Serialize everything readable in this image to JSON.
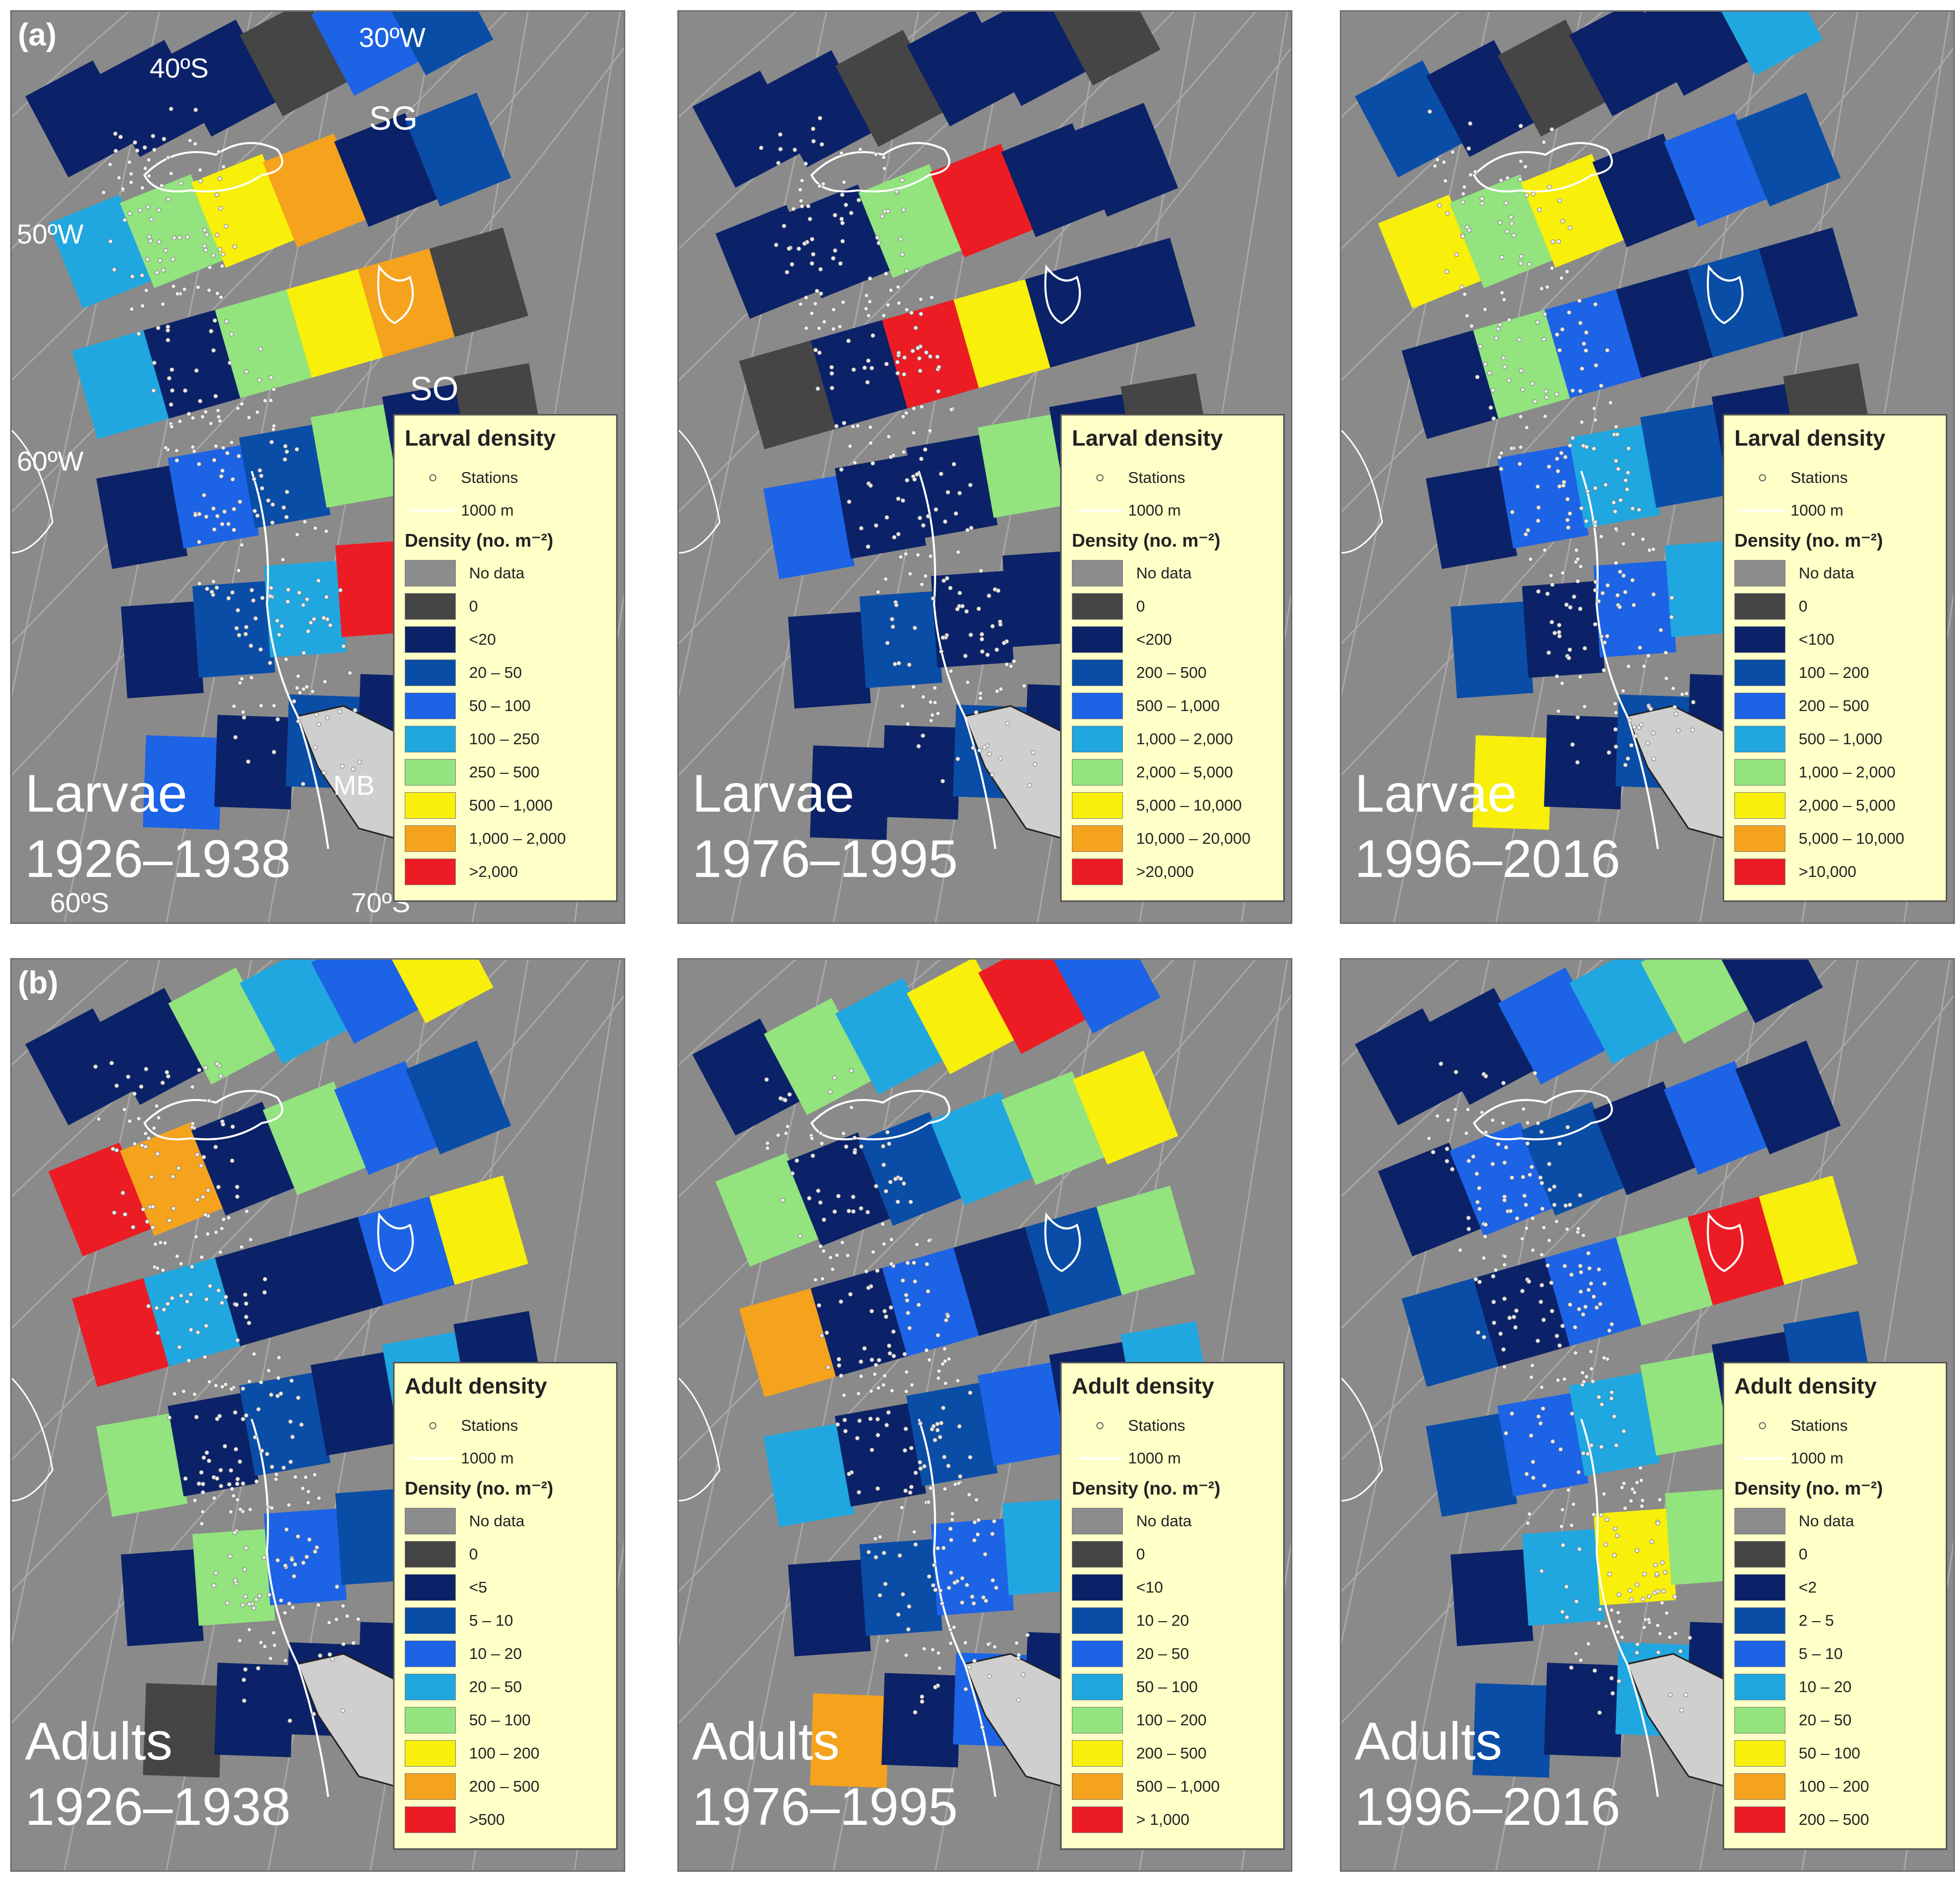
{
  "panel_a_letter": "(a)",
  "panel_b_letter": "(b)",
  "map_labels": {
    "lon_30w": "30ºW",
    "lat_40s": "40ºS",
    "sg": "SG",
    "lon_50w": "50ºW",
    "so": "SO",
    "lon_60w": "60ºW",
    "mb": "MB",
    "lat_60s": "60ºS",
    "lat_70s": "70ºS"
  },
  "legend_common": {
    "stations": "Stations",
    "isobath": "1000 m",
    "density_label": "Density (no. m⁻²)"
  },
  "colors": {
    "no_data": "#8c8c8c",
    "zero": "#454545",
    "c1": "#0b2268",
    "c2": "#0a4da6",
    "c3": "#1c63e6",
    "c4": "#20a7df",
    "c5": "#93e37e",
    "c6": "#f8ef0a",
    "c7": "#f5a21d",
    "c8": "#ec1c24"
  },
  "panels": [
    {
      "id": "larvae-1926",
      "row": "a",
      "species_label": "Larvae",
      "period": "1926–1938",
      "legend_title": "Larval density",
      "classes": [
        "No data",
        "0",
        "<20",
        "20 – 50",
        "50 – 100",
        "100 – 250",
        "250 – 500",
        "500 – 1,000",
        "1,000 – 2,000",
        ">2,000"
      ]
    },
    {
      "id": "larvae-1976",
      "row": "a",
      "species_label": "Larvae",
      "period": "1976–1995",
      "legend_title": "Larval density",
      "classes": [
        "No data",
        "0",
        "<200",
        "200 – 500",
        "500 – 1,000",
        "1,000 – 2,000",
        "2,000 – 5,000",
        "5,000 – 10,000",
        "10,000 – 20,000",
        ">20,000"
      ]
    },
    {
      "id": "larvae-1996",
      "row": "a",
      "species_label": "Larvae",
      "period": "1996–2016",
      "legend_title": "Larval density",
      "classes": [
        "No data",
        "0",
        "<100",
        "100 – 200",
        "200 – 500",
        "500 – 1,000",
        "1,000 – 2,000",
        "2,000 – 5,000",
        "5,000 – 10,000",
        ">10,000"
      ]
    },
    {
      "id": "adults-1926",
      "row": "b",
      "species_label": "Adults",
      "period": "1926–1938",
      "legend_title": "Adult density",
      "classes": [
        "No data",
        "0",
        "<5",
        "5 – 10",
        "10 – 20",
        "20 – 50",
        "50 – 100",
        "100 – 200",
        "200 – 500",
        ">500"
      ]
    },
    {
      "id": "adults-1976",
      "row": "b",
      "species_label": "Adults",
      "period": "1976–1995",
      "legend_title": "Adult density",
      "classes": [
        "No data",
        "0",
        "<10",
        "10 – 20",
        "20 – 50",
        "50 – 100",
        "100 – 200",
        "200 – 500",
        "500 – 1,000",
        "> 1,000"
      ]
    },
    {
      "id": "adults-1996",
      "row": "b",
      "species_label": "Adults",
      "period": "1996–2016",
      "legend_title": "Adult density",
      "classes": [
        "No data",
        "0",
        "<2",
        "2 – 5",
        "5 – 10",
        "10 – 20",
        "20 – 50",
        "50 – 100",
        "100 – 200",
        "200 – 500"
      ]
    }
  ]
}
